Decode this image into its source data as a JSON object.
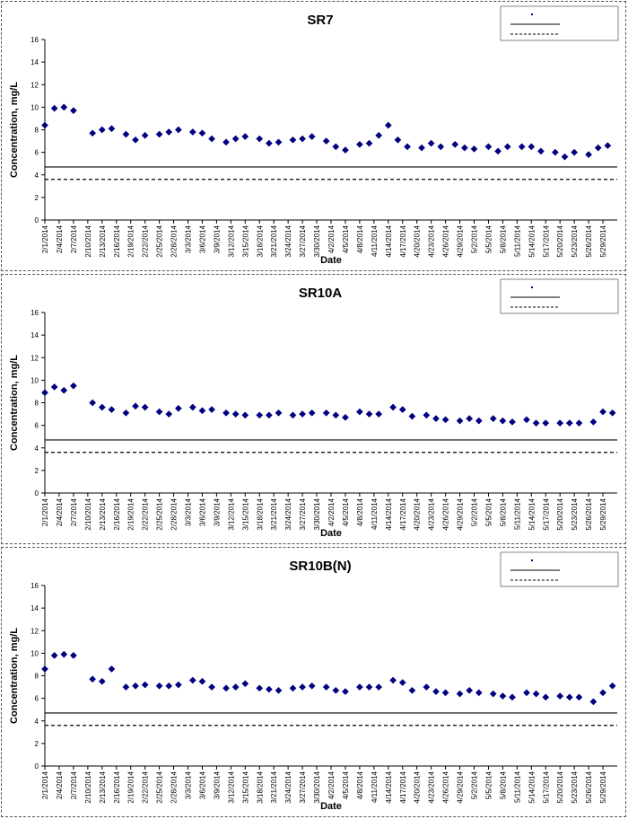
{
  "chart_data": [
    {
      "type": "scatter",
      "title": "SR7",
      "xlabel": "Date",
      "ylabel": "Concentration, mg/L",
      "ylim": [
        0,
        16
      ],
      "yticks": [
        0,
        2,
        4,
        6,
        8,
        10,
        12,
        14,
        16
      ],
      "xlim": [
        "2014-02-01",
        "2014-06-01"
      ],
      "xtick_labels": [
        "2/1/2014",
        "2/4/2014",
        "2/7/2014",
        "2/10/2014",
        "2/13/2014",
        "2/16/2014",
        "2/19/2014",
        "2/22/2014",
        "2/25/2014",
        "2/28/2014",
        "3/3/2014",
        "3/6/2014",
        "3/9/2014",
        "3/12/2014",
        "3/15/2014",
        "3/18/2014",
        "3/21/2014",
        "3/24/2014",
        "3/27/2014",
        "3/30/2014",
        "4/2/2014",
        "4/5/2014",
        "4/8/2014",
        "4/11/2014",
        "4/14/2014",
        "4/17/2014",
        "4/20/2014",
        "4/23/2014",
        "4/26/2014",
        "4/29/2014",
        "5/2/2014",
        "5/5/2014",
        "5/8/2014",
        "5/11/2014",
        "5/14/2014",
        "5/17/2014",
        "5/20/2014",
        "5/23/2014",
        "5/26/2014",
        "5/29/2014"
      ],
      "grid": false,
      "legend": "top-right",
      "series": [
        {
          "type": "scatter",
          "color": "#000080",
          "marker": "diamond",
          "points": [
            [
              "2014-02-01",
              8.4
            ],
            [
              "2014-02-03",
              9.9
            ],
            [
              "2014-02-05",
              10.0
            ],
            [
              "2014-02-07",
              9.7
            ],
            [
              "2014-02-11",
              7.7
            ],
            [
              "2014-02-13",
              8.0
            ],
            [
              "2014-02-15",
              8.1
            ],
            [
              "2014-02-18",
              7.6
            ],
            [
              "2014-02-20",
              7.1
            ],
            [
              "2014-02-22",
              7.5
            ],
            [
              "2014-02-25",
              7.6
            ],
            [
              "2014-02-27",
              7.8
            ],
            [
              "2014-03-01",
              8.0
            ],
            [
              "2014-03-04",
              7.8
            ],
            [
              "2014-03-06",
              7.7
            ],
            [
              "2014-03-08",
              7.2
            ],
            [
              "2014-03-11",
              6.9
            ],
            [
              "2014-03-13",
              7.2
            ],
            [
              "2014-03-15",
              7.4
            ],
            [
              "2014-03-18",
              7.2
            ],
            [
              "2014-03-20",
              6.8
            ],
            [
              "2014-03-22",
              6.9
            ],
            [
              "2014-03-25",
              7.1
            ],
            [
              "2014-03-27",
              7.2
            ],
            [
              "2014-03-29",
              7.4
            ],
            [
              "2014-04-01",
              7.0
            ],
            [
              "2014-04-03",
              6.5
            ],
            [
              "2014-04-05",
              6.2
            ],
            [
              "2014-04-08",
              6.7
            ],
            [
              "2014-04-10",
              6.8
            ],
            [
              "2014-04-12",
              7.5
            ],
            [
              "2014-04-14",
              8.4
            ],
            [
              "2014-04-16",
              7.1
            ],
            [
              "2014-04-18",
              6.5
            ],
            [
              "2014-04-21",
              6.4
            ],
            [
              "2014-04-23",
              6.8
            ],
            [
              "2014-04-25",
              6.5
            ],
            [
              "2014-04-28",
              6.7
            ],
            [
              "2014-04-30",
              6.4
            ],
            [
              "2014-05-02",
              6.3
            ],
            [
              "2014-05-05",
              6.5
            ],
            [
              "2014-05-07",
              6.1
            ],
            [
              "2014-05-09",
              6.5
            ],
            [
              "2014-05-12",
              6.5
            ],
            [
              "2014-05-14",
              6.5
            ],
            [
              "2014-05-16",
              6.1
            ],
            [
              "2014-05-19",
              6.0
            ],
            [
              "2014-05-21",
              5.6
            ],
            [
              "2014-05-23",
              6.0
            ],
            [
              "2014-05-26",
              5.8
            ],
            [
              "2014-05-28",
              6.4
            ],
            [
              "2014-05-30",
              6.6
            ]
          ]
        },
        {
          "type": "hline",
          "value": 4.7,
          "style": "solid",
          "color": "#000000"
        },
        {
          "type": "hline",
          "value": 3.6,
          "style": "dashed",
          "color": "#000000"
        }
      ]
    },
    {
      "type": "scatter",
      "title": "SR10A",
      "xlabel": "Date",
      "ylabel": "Concentration, mg/L",
      "ylim": [
        0,
        16
      ],
      "yticks": [
        0,
        2,
        4,
        6,
        8,
        10,
        12,
        14,
        16
      ],
      "xlim": [
        "2014-02-01",
        "2014-06-01"
      ],
      "xtick_labels": [
        "2/1/2014",
        "2/4/2014",
        "2/7/2014",
        "2/10/2014",
        "2/13/2014",
        "2/16/2014",
        "2/19/2014",
        "2/22/2014",
        "2/25/2014",
        "2/28/2014",
        "3/3/2014",
        "3/6/2014",
        "3/9/2014",
        "3/12/2014",
        "3/15/2014",
        "3/18/2014",
        "3/21/2014",
        "3/24/2014",
        "3/27/2014",
        "3/30/2014",
        "4/2/2014",
        "4/5/2014",
        "4/8/2014",
        "4/11/2014",
        "4/14/2014",
        "4/17/2014",
        "4/20/2014",
        "4/23/2014",
        "4/26/2014",
        "4/29/2014",
        "5/2/2014",
        "5/5/2014",
        "5/8/2014",
        "5/11/2014",
        "5/14/2014",
        "5/17/2014",
        "5/20/2014",
        "5/23/2014",
        "5/26/2014",
        "5/29/2014"
      ],
      "grid": false,
      "legend": "top-right",
      "series": [
        {
          "type": "scatter",
          "color": "#000080",
          "marker": "diamond",
          "points": [
            [
              "2014-02-01",
              8.9
            ],
            [
              "2014-02-03",
              9.4
            ],
            [
              "2014-02-05",
              9.1
            ],
            [
              "2014-02-07",
              9.5
            ],
            [
              "2014-02-11",
              8.0
            ],
            [
              "2014-02-13",
              7.6
            ],
            [
              "2014-02-15",
              7.4
            ],
            [
              "2014-02-18",
              7.1
            ],
            [
              "2014-02-20",
              7.7
            ],
            [
              "2014-02-22",
              7.6
            ],
            [
              "2014-02-25",
              7.2
            ],
            [
              "2014-02-27",
              7.0
            ],
            [
              "2014-03-01",
              7.5
            ],
            [
              "2014-03-04",
              7.6
            ],
            [
              "2014-03-06",
              7.3
            ],
            [
              "2014-03-08",
              7.4
            ],
            [
              "2014-03-11",
              7.1
            ],
            [
              "2014-03-13",
              7.0
            ],
            [
              "2014-03-15",
              6.9
            ],
            [
              "2014-03-18",
              6.9
            ],
            [
              "2014-03-20",
              6.9
            ],
            [
              "2014-03-22",
              7.1
            ],
            [
              "2014-03-25",
              6.9
            ],
            [
              "2014-03-27",
              7.0
            ],
            [
              "2014-03-29",
              7.1
            ],
            [
              "2014-04-01",
              7.1
            ],
            [
              "2014-04-03",
              6.9
            ],
            [
              "2014-04-05",
              6.7
            ],
            [
              "2014-04-08",
              7.2
            ],
            [
              "2014-04-10",
              7.0
            ],
            [
              "2014-04-12",
              7.0
            ],
            [
              "2014-04-15",
              7.6
            ],
            [
              "2014-04-17",
              7.4
            ],
            [
              "2014-04-19",
              6.8
            ],
            [
              "2014-04-22",
              6.9
            ],
            [
              "2014-04-24",
              6.6
            ],
            [
              "2014-04-26",
              6.5
            ],
            [
              "2014-04-29",
              6.4
            ],
            [
              "2014-05-01",
              6.6
            ],
            [
              "2014-05-03",
              6.4
            ],
            [
              "2014-05-06",
              6.6
            ],
            [
              "2014-05-08",
              6.4
            ],
            [
              "2014-05-10",
              6.3
            ],
            [
              "2014-05-13",
              6.5
            ],
            [
              "2014-05-15",
              6.2
            ],
            [
              "2014-05-17",
              6.2
            ],
            [
              "2014-05-20",
              6.2
            ],
            [
              "2014-05-22",
              6.2
            ],
            [
              "2014-05-24",
              6.2
            ],
            [
              "2014-05-27",
              6.3
            ],
            [
              "2014-05-29",
              7.2
            ],
            [
              "2014-05-31",
              7.1
            ]
          ]
        },
        {
          "type": "hline",
          "value": 4.7,
          "style": "solid",
          "color": "#000000"
        },
        {
          "type": "hline",
          "value": 3.6,
          "style": "dashed",
          "color": "#000000"
        }
      ]
    },
    {
      "type": "scatter",
      "title": "SR10B(N)",
      "xlabel": "Date",
      "ylabel": "Concentration, mg/L",
      "ylim": [
        0,
        16
      ],
      "yticks": [
        0,
        2,
        4,
        6,
        8,
        10,
        12,
        14,
        16
      ],
      "xlim": [
        "2014-02-01",
        "2014-06-01"
      ],
      "xtick_labels": [
        "2/1/2014",
        "2/4/2014",
        "2/7/2014",
        "2/10/2014",
        "2/13/2014",
        "2/16/2014",
        "2/19/2014",
        "2/22/2014",
        "2/25/2014",
        "2/28/2014",
        "3/3/2014",
        "3/6/2014",
        "3/9/2014",
        "3/12/2014",
        "3/15/2014",
        "3/18/2014",
        "3/21/2014",
        "3/24/2014",
        "3/27/2014",
        "3/30/2014",
        "4/2/2014",
        "4/5/2014",
        "4/8/2014",
        "4/11/2014",
        "4/14/2014",
        "4/17/2014",
        "4/20/2014",
        "4/23/2014",
        "4/26/2014",
        "4/29/2014",
        "5/2/2014",
        "5/5/2014",
        "5/8/2014",
        "5/11/2014",
        "5/14/2014",
        "5/17/2014",
        "5/20/2014",
        "5/23/2014",
        "5/26/2014",
        "5/29/2014"
      ],
      "grid": false,
      "legend": "top-right",
      "series": [
        {
          "type": "scatter",
          "color": "#000080",
          "marker": "diamond",
          "points": [
            [
              "2014-02-01",
              8.6
            ],
            [
              "2014-02-03",
              9.8
            ],
            [
              "2014-02-05",
              9.9
            ],
            [
              "2014-02-07",
              9.8
            ],
            [
              "2014-02-11",
              7.7
            ],
            [
              "2014-02-13",
              7.5
            ],
            [
              "2014-02-15",
              8.6
            ],
            [
              "2014-02-18",
              7.0
            ],
            [
              "2014-02-20",
              7.1
            ],
            [
              "2014-02-22",
              7.2
            ],
            [
              "2014-02-25",
              7.1
            ],
            [
              "2014-02-27",
              7.1
            ],
            [
              "2014-03-01",
              7.2
            ],
            [
              "2014-03-04",
              7.6
            ],
            [
              "2014-03-06",
              7.5
            ],
            [
              "2014-03-08",
              7.0
            ],
            [
              "2014-03-11",
              6.9
            ],
            [
              "2014-03-13",
              7.0
            ],
            [
              "2014-03-15",
              7.3
            ],
            [
              "2014-03-18",
              6.9
            ],
            [
              "2014-03-20",
              6.8
            ],
            [
              "2014-03-22",
              6.7
            ],
            [
              "2014-03-25",
              6.9
            ],
            [
              "2014-03-27",
              7.0
            ],
            [
              "2014-03-29",
              7.1
            ],
            [
              "2014-04-01",
              7.0
            ],
            [
              "2014-04-03",
              6.7
            ],
            [
              "2014-04-05",
              6.6
            ],
            [
              "2014-04-08",
              7.0
            ],
            [
              "2014-04-10",
              7.0
            ],
            [
              "2014-04-12",
              7.0
            ],
            [
              "2014-04-15",
              7.6
            ],
            [
              "2014-04-17",
              7.4
            ],
            [
              "2014-04-19",
              6.7
            ],
            [
              "2014-04-22",
              7.0
            ],
            [
              "2014-04-24",
              6.6
            ],
            [
              "2014-04-26",
              6.5
            ],
            [
              "2014-04-29",
              6.4
            ],
            [
              "2014-05-01",
              6.7
            ],
            [
              "2014-05-03",
              6.5
            ],
            [
              "2014-05-06",
              6.4
            ],
            [
              "2014-05-08",
              6.2
            ],
            [
              "2014-05-10",
              6.1
            ],
            [
              "2014-05-13",
              6.5
            ],
            [
              "2014-05-15",
              6.4
            ],
            [
              "2014-05-17",
              6.1
            ],
            [
              "2014-05-20",
              6.2
            ],
            [
              "2014-05-22",
              6.1
            ],
            [
              "2014-05-24",
              6.1
            ],
            [
              "2014-05-27",
              5.7
            ],
            [
              "2014-05-29",
              6.5
            ],
            [
              "2014-05-31",
              7.1
            ]
          ]
        },
        {
          "type": "hline",
          "value": 4.7,
          "style": "solid",
          "color": "#000000"
        },
        {
          "type": "hline",
          "value": 3.6,
          "style": "dashed",
          "color": "#000000"
        }
      ]
    }
  ]
}
